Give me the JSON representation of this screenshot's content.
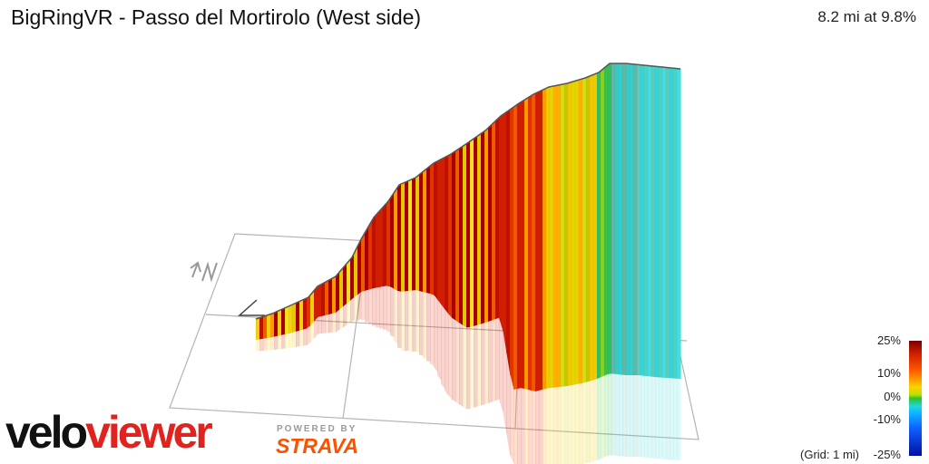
{
  "header": {
    "title": "BigRingVR - Passo del Mortirolo (West side)",
    "stats": "8.2 mi at 9.8%"
  },
  "compass": {
    "label": "N",
    "icon": "north-arrow-icon"
  },
  "legend": {
    "labels": [
      "25%",
      "10%",
      "0%",
      "-10%",
      "-25%"
    ],
    "grid_note": "(Grid: 1 mi)"
  },
  "branding": {
    "logo_part1": "velo",
    "logo_part2": "viewer",
    "powered_by": "POWERED BY",
    "strava": "STRAVA"
  },
  "colors": {
    "logo_dark": "#111111",
    "logo_red": "#e0231f",
    "strava_orange": "#fc5200",
    "grid": "#b4b4b4"
  }
}
